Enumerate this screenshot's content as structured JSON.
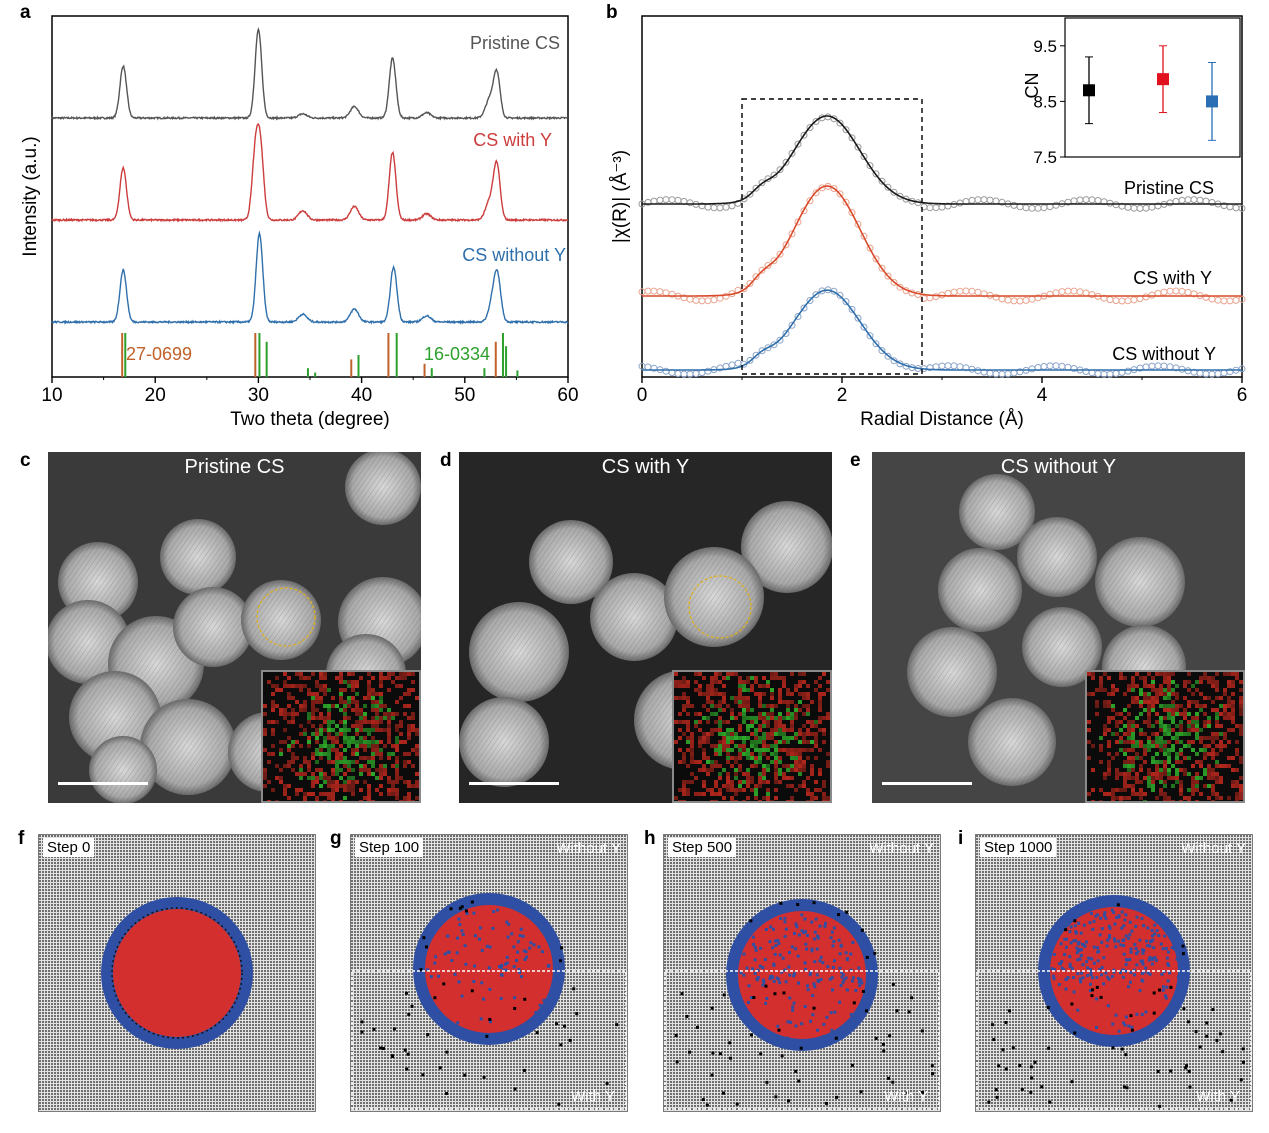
{
  "panel_a": {
    "letter": "a",
    "xlabel": "Two theta (degree)",
    "ylabel": "Intensity (a.u.)",
    "x_ticks": [
      "10",
      "20",
      "30",
      "40",
      "50",
      "60"
    ],
    "chart_data": {
      "type": "line",
      "xlim": [
        10,
        60
      ],
      "series": [
        {
          "name": "Pristine CS",
          "color": "#555555",
          "peaks": [
            [
              16.9,
              1.0
            ],
            [
              30.0,
              1.7
            ],
            [
              34.3,
              0.08
            ],
            [
              39.3,
              0.22
            ],
            [
              43.0,
              1.15
            ],
            [
              46.3,
              0.1
            ],
            [
              52.4,
              0.35
            ],
            [
              53.1,
              0.85
            ]
          ]
        },
        {
          "name": "CS with Y",
          "color": "#cc3d3d",
          "peaks": [
            [
              16.9,
              1.0
            ],
            [
              29.7,
              1.2
            ],
            [
              30.2,
              1.3
            ],
            [
              34.3,
              0.18
            ],
            [
              39.3,
              0.26
            ],
            [
              43.0,
              1.3
            ],
            [
              46.3,
              0.12
            ],
            [
              52.4,
              0.35
            ],
            [
              53.1,
              1.05
            ]
          ]
        },
        {
          "name": "CS without Y",
          "color": "#2f6fab",
          "peaks": [
            [
              16.9,
              1.0
            ],
            [
              30.1,
              1.7
            ],
            [
              34.3,
              0.15
            ],
            [
              39.3,
              0.25
            ],
            [
              43.1,
              1.05
            ],
            [
              46.3,
              0.12
            ],
            [
              52.8,
              0.5
            ],
            [
              53.2,
              0.65
            ]
          ]
        }
      ],
      "reference_sticks": [
        {
          "name": "27-0699",
          "color": "#c0622a",
          "positions": [
            [
              16.8,
              1.0
            ],
            [
              29.7,
              1.0
            ],
            [
              39.0,
              0.4
            ],
            [
              42.6,
              1.0
            ],
            [
              46.1,
              0.3
            ],
            [
              53.0,
              0.8
            ]
          ]
        },
        {
          "name": "16-0334",
          "color": "#2ca02c",
          "positions": [
            [
              17.1,
              1.0
            ],
            [
              30.1,
              1.0
            ],
            [
              30.8,
              0.8
            ],
            [
              34.8,
              0.2
            ],
            [
              35.5,
              0.1
            ],
            [
              39.7,
              0.5
            ],
            [
              43.4,
              1.0
            ],
            [
              46.8,
              0.2
            ],
            [
              51.9,
              0.2
            ],
            [
              53.7,
              1.0
            ],
            [
              54.0,
              0.7
            ],
            [
              55.1,
              0.15
            ]
          ]
        }
      ]
    }
  },
  "panel_b": {
    "letter": "b",
    "xlabel": "Radial Distance (Å)",
    "ylabel": "|χ(R)| (Å⁻³)",
    "x_ticks": [
      "0",
      "2",
      "4",
      "6"
    ],
    "chart_data": {
      "type": "line",
      "xlim": [
        0,
        6
      ],
      "series": [
        {
          "name": "Pristine CS",
          "color": "#1a1a1a",
          "fit_color": "#999999",
          "peak_r": 1.85,
          "amplitude": 1.0
        },
        {
          "name": "CS with Y",
          "color": "#d94a2a",
          "fit_color": "#e8a48f",
          "peak_r": 1.85,
          "amplitude": 1.1
        },
        {
          "name": "CS without Y",
          "color": "#2f6fab",
          "fit_color": "#8aa3c7",
          "peak_r": 1.85,
          "amplitude": 0.95
        }
      ],
      "highlight_range": [
        1.0,
        2.8
      ],
      "inset": {
        "type": "scatter",
        "ylabel": "CN",
        "y_ticks": [
          "9.5",
          "8.5",
          "7.5"
        ],
        "ylim": [
          7.5,
          10.0
        ],
        "points": [
          {
            "label": "Pristine CS",
            "value": 8.7,
            "error": 0.6,
            "color": "#000000"
          },
          {
            "label": "CS with Y",
            "value": 8.9,
            "error": 0.6,
            "color": "#e0101f"
          },
          {
            "label": "CS without Y",
            "value": 8.5,
            "error": 0.7,
            "color": "#2a6eb5"
          }
        ]
      }
    }
  },
  "panel_c": {
    "letter": "c",
    "title": "Pristine CS"
  },
  "panel_d": {
    "letter": "d",
    "title": "CS with Y"
  },
  "panel_e": {
    "letter": "e",
    "title": "CS without Y"
  },
  "panel_f": {
    "letter": "f",
    "step": "Step 0"
  },
  "panel_g": {
    "letter": "g",
    "step": "Step 100",
    "top_label": "Without Y",
    "bottom_label": "With Y"
  },
  "panel_h": {
    "letter": "h",
    "step": "Step 500",
    "top_label": "Without Y",
    "bottom_label": "With Y"
  },
  "panel_i": {
    "letter": "i",
    "step": "Step 1000",
    "top_label": "Without Y",
    "bottom_label": "With Y"
  },
  "colors": {
    "core": "#d32f2f",
    "shell": "#2e4fa3",
    "lattice": "#8a8a8a"
  }
}
